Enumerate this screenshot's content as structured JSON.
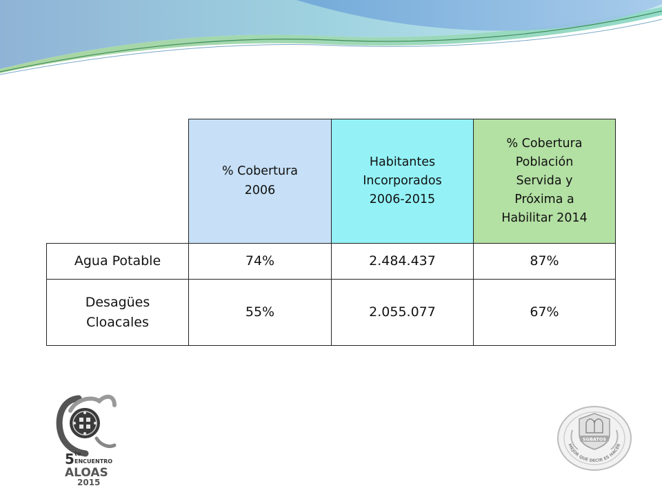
{
  "table": {
    "headers": [
      "",
      "% Cobertura\n2006",
      "Habitantes\nIncorporados\n2006-2015",
      "% Cobertura\nPoblación\nServida y\nPróxima a\nHabilitar 2014"
    ],
    "rows": [
      {
        "label": "Agua Potable",
        "cobertura_2006": "74%",
        "habitantes": "2.484.437",
        "cobertura_2014": "87%"
      },
      {
        "label": "Desagües\nCloacales",
        "cobertura_2006": "55%",
        "habitantes": "2.055.077",
        "cobertura_2014": "67%"
      }
    ]
  },
  "colors": {
    "header_blue": "#c7e0f7",
    "header_cyan": "#94f2f6",
    "header_green": "#b3e0a3"
  },
  "logo_left": {
    "num": "5",
    "sup": "to",
    "line1": "ENCUENTRO",
    "line2": "ALOAS",
    "line3": "2015"
  },
  "logo_right": {
    "banner": "SGBATOS",
    "motto": "MEJOR QUE DECIR ES HACER"
  }
}
